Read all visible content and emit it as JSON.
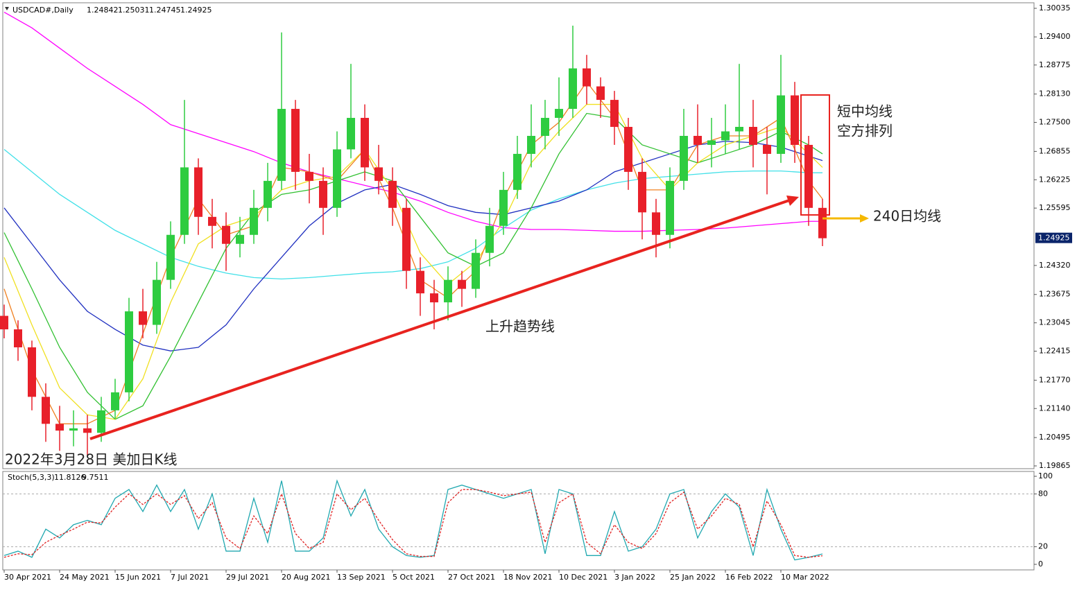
{
  "chart_data": [
    {
      "type": "candlestick",
      "title": "USDCAD#,Daily",
      "header_values": [
        1.24842,
        1.25031,
        1.24745,
        1.24925
      ],
      "up_color": "#2ecc40",
      "down_color": "#e8202a",
      "x": [
        0,
        4,
        8,
        12,
        16,
        20,
        24,
        28,
        32,
        36,
        40,
        44,
        48,
        52,
        56,
        60,
        64,
        68,
        72,
        76,
        80,
        84,
        88,
        92,
        96,
        100,
        104,
        108,
        112,
        116,
        120,
        124,
        128,
        132,
        136,
        140,
        144,
        148,
        152,
        156,
        160,
        164,
        168,
        172,
        176,
        180,
        184,
        188,
        192,
        196,
        200,
        204,
        208,
        212,
        216,
        220,
        224,
        228,
        232,
        236
      ],
      "open": [
        1.232,
        1.229,
        1.225,
        1.214,
        1.208,
        1.2065,
        1.207,
        1.206,
        1.211,
        1.215,
        1.233,
        1.23,
        1.24,
        1.25,
        1.265,
        1.254,
        1.252,
        1.248,
        1.25,
        1.256,
        1.262,
        1.278,
        1.264,
        1.262,
        1.256,
        1.269,
        1.276,
        1.265,
        1.262,
        1.256,
        1.242,
        1.237,
        1.235,
        1.24,
        1.238,
        1.246,
        1.252,
        1.26,
        1.268,
        1.272,
        1.276,
        1.278,
        1.287,
        1.283,
        1.28,
        1.274,
        1.264,
        1.255,
        1.25,
        1.262,
        1.272,
        1.27,
        1.271,
        1.273,
        1.274,
        1.27,
        1.268,
        1.281,
        1.27,
        1.256
      ],
      "high": [
        1.2345,
        1.231,
        1.2265,
        1.217,
        1.212,
        1.211,
        1.21,
        1.214,
        1.218,
        1.236,
        1.238,
        1.244,
        1.253,
        1.28,
        1.267,
        1.258,
        1.255,
        1.254,
        1.26,
        1.266,
        1.295,
        1.28,
        1.268,
        1.265,
        1.273,
        1.288,
        1.279,
        1.27,
        1.265,
        1.258,
        1.245,
        1.24,
        1.243,
        1.242,
        1.249,
        1.256,
        1.264,
        1.272,
        1.279,
        1.28,
        1.285,
        1.2965,
        1.29,
        1.285,
        1.282,
        1.276,
        1.267,
        1.258,
        1.265,
        1.278,
        1.279,
        1.276,
        1.279,
        1.288,
        1.28,
        1.274,
        1.29,
        1.284,
        1.272,
        1.258
      ],
      "low": [
        1.227,
        1.222,
        1.211,
        1.204,
        1.202,
        1.203,
        1.201,
        1.204,
        1.209,
        1.213,
        1.227,
        1.228,
        1.238,
        1.248,
        1.25,
        1.247,
        1.242,
        1.245,
        1.248,
        1.253,
        1.26,
        1.26,
        1.257,
        1.25,
        1.254,
        1.267,
        1.262,
        1.259,
        1.252,
        1.238,
        1.232,
        1.229,
        1.231,
        1.234,
        1.236,
        1.243,
        1.25,
        1.258,
        1.265,
        1.269,
        1.272,
        1.276,
        1.279,
        1.276,
        1.27,
        1.26,
        1.249,
        1.245,
        1.247,
        1.26,
        1.266,
        1.265,
        1.268,
        1.269,
        1.265,
        1.259,
        1.266,
        1.266,
        1.252,
        1.2475
      ],
      "close": [
        1.229,
        1.225,
        1.214,
        1.208,
        1.2065,
        1.207,
        1.206,
        1.211,
        1.215,
        1.233,
        1.23,
        1.24,
        1.25,
        1.265,
        1.254,
        1.252,
        1.248,
        1.25,
        1.256,
        1.262,
        1.278,
        1.264,
        1.262,
        1.256,
        1.269,
        1.276,
        1.265,
        1.262,
        1.256,
        1.242,
        1.237,
        1.235,
        1.24,
        1.238,
        1.246,
        1.252,
        1.26,
        1.268,
        1.272,
        1.276,
        1.278,
        1.287,
        1.283,
        1.28,
        1.274,
        1.264,
        1.255,
        1.25,
        1.262,
        1.272,
        1.27,
        1.271,
        1.273,
        1.274,
        1.27,
        1.268,
        1.281,
        1.27,
        1.256,
        1.24925
      ],
      "ma_x": [
        0,
        8,
        16,
        24,
        32,
        40,
        48,
        56,
        64,
        72,
        80,
        88,
        96,
        104,
        112,
        120,
        128,
        136,
        144,
        152,
        160,
        168,
        176,
        184,
        192,
        200,
        208,
        216,
        224,
        232,
        236
      ],
      "lines": [
        {
          "color": "#ff00ff",
          "values": [
            1.2995,
            1.296,
            1.2915,
            1.287,
            1.283,
            1.279,
            1.2745,
            1.2725,
            1.2705,
            1.2685,
            1.266,
            1.264,
            1.2625,
            1.261,
            1.2595,
            1.2575,
            1.255,
            1.253,
            1.2516,
            1.2512,
            1.2512,
            1.251,
            1.2508,
            1.2508,
            1.251,
            1.2512,
            1.2515,
            1.252,
            1.2525,
            1.253,
            1.253
          ]
        },
        {
          "color": "#40e0e8",
          "values": [
            1.269,
            1.264,
            1.259,
            1.255,
            1.251,
            1.248,
            1.245,
            1.243,
            1.2415,
            1.2405,
            1.2402,
            1.2405,
            1.241,
            1.2415,
            1.2418,
            1.2425,
            1.244,
            1.247,
            1.2515,
            1.2555,
            1.258,
            1.26,
            1.2615,
            1.2625,
            1.263,
            1.2635,
            1.264,
            1.2642,
            1.2642,
            1.2638,
            1.2638
          ]
        },
        {
          "color": "#2030c0",
          "values": [
            1.256,
            1.248,
            1.24,
            1.233,
            1.229,
            1.2255,
            1.2242,
            1.225,
            1.23,
            1.238,
            1.245,
            1.252,
            1.257,
            1.26,
            1.2612,
            1.259,
            1.2565,
            1.255,
            1.2545,
            1.256,
            1.2575,
            1.26,
            1.264,
            1.266,
            1.268,
            1.27,
            1.2708,
            1.2705,
            1.2695,
            1.2675,
            1.2665
          ]
        },
        {
          "color": "#30c030",
          "values": [
            1.2505,
            1.238,
            1.225,
            1.215,
            1.209,
            1.212,
            1.223,
            1.235,
            1.247,
            1.255,
            1.259,
            1.26,
            1.262,
            1.264,
            1.262,
            1.254,
            1.246,
            1.243,
            1.246,
            1.256,
            1.268,
            1.277,
            1.276,
            1.27,
            1.268,
            1.266,
            1.268,
            1.27,
            1.273,
            1.27,
            1.268
          ]
        },
        {
          "color": "#f0e020",
          "values": [
            1.245,
            1.23,
            1.216,
            1.21,
            1.209,
            1.218,
            1.235,
            1.248,
            1.252,
            1.254,
            1.26,
            1.262,
            1.263,
            1.269,
            1.26,
            1.246,
            1.239,
            1.244,
            1.253,
            1.266,
            1.273,
            1.279,
            1.279,
            1.267,
            1.26,
            1.266,
            1.27,
            1.272,
            1.274,
            1.268,
            1.265
          ]
        },
        {
          "color": "#f08020",
          "values": [
            1.238,
            1.22,
            1.208,
            1.208,
            1.211,
            1.228,
            1.245,
            1.258,
            1.25,
            1.252,
            1.265,
            1.264,
            1.262,
            1.269,
            1.256,
            1.24,
            1.236,
            1.242,
            1.258,
            1.27,
            1.275,
            1.284,
            1.276,
            1.26,
            1.26,
            1.27,
            1.272,
            1.272,
            1.276,
            1.262,
            1.258
          ]
        }
      ],
      "xlim": [
        0,
        297
      ],
      "xticks": [
        {
          "value": 0,
          "label": "30 Apr 2021"
        },
        {
          "value": 16,
          "label": "24 May 2021"
        },
        {
          "value": 32,
          "label": "15 Jun 2021"
        },
        {
          "value": 48,
          "label": "7 Jul 2021"
        },
        {
          "value": 64,
          "label": "29 Jul 2021"
        },
        {
          "value": 80,
          "label": "20 Aug 2021"
        },
        {
          "value": 96,
          "label": "13 Sep 2021"
        },
        {
          "value": 112,
          "label": "5 Oct 2021"
        },
        {
          "value": 128,
          "label": "27 Oct 2021"
        },
        {
          "value": 144,
          "label": "18 Nov 2021"
        },
        {
          "value": 160,
          "label": "10 Dec 2021"
        },
        {
          "value": 176,
          "label": "3 Jan 2022"
        },
        {
          "value": 192,
          "label": "25 Jan 2022"
        },
        {
          "value": 208,
          "label": "16 Feb 2022"
        },
        {
          "value": 224,
          "label": "10 Mar 2022"
        }
      ],
      "ylim": [
        1.19865,
        1.30035
      ],
      "yticks": [
        1.30035,
        {
          "value": 1.294,
          "label": "1.29400"
        },
        1.28775,
        {
          "value": 1.2813,
          "label": "1.28130"
        },
        {
          "value": 1.275,
          "label": "1.27500"
        },
        1.26855,
        1.26225,
        1.25595,
        {
          "value": 1.2432,
          "label": "1.24320"
        },
        1.23675,
        1.23045,
        1.22415,
        {
          "value": 1.2177,
          "label": "1.21770"
        },
        {
          "value": 1.2114,
          "label": "1.21140"
        },
        1.20495,
        1.19865
      ],
      "annotations": [
        "短中均线",
        "空方排列",
        "240日均线",
        "上升趋势线",
        "2022年3月28日 美加日K线"
      ]
    },
    {
      "type": "line",
      "title": "Stoch(5,3,3)",
      "x": [
        0,
        4,
        8,
        12,
        16,
        20,
        24,
        28,
        32,
        36,
        40,
        44,
        48,
        52,
        56,
        60,
        64,
        68,
        72,
        76,
        80,
        84,
        88,
        92,
        96,
        100,
        104,
        108,
        112,
        116,
        120,
        124,
        128,
        132,
        136,
        140,
        144,
        148,
        152,
        156,
        160,
        164,
        168,
        172,
        176,
        180,
        184,
        188,
        192,
        196,
        200,
        204,
        208,
        212,
        216,
        220,
        224,
        228,
        232,
        236
      ],
      "series": [
        {
          "color": "#20a8b0",
          "values": [
            10,
            15,
            8,
            40,
            30,
            45,
            50,
            45,
            75,
            85,
            60,
            90,
            60,
            85,
            40,
            80,
            15,
            15,
            75,
            25,
            95,
            15,
            15,
            30,
            95,
            55,
            85,
            40,
            20,
            10,
            8,
            10,
            85,
            90,
            85,
            80,
            75,
            80,
            85,
            12,
            85,
            80,
            10,
            10,
            60,
            15,
            20,
            40,
            80,
            85,
            30,
            60,
            80,
            65,
            10,
            85,
            40,
            5,
            8,
            11.8126
          ]
        },
        {
          "color": "#e02020",
          "values": [
            8,
            12,
            11,
            25,
            33,
            40,
            48,
            47,
            65,
            80,
            68,
            80,
            68,
            78,
            52,
            70,
            30,
            18,
            55,
            35,
            80,
            35,
            18,
            25,
            80,
            62,
            75,
            50,
            28,
            12,
            9,
            9,
            70,
            85,
            85,
            82,
            78,
            80,
            82,
            25,
            70,
            80,
            25,
            12,
            45,
            25,
            18,
            35,
            70,
            82,
            40,
            55,
            75,
            68,
            20,
            72,
            45,
            10,
            8,
            9.7511
          ]
        }
      ],
      "ylim": [
        0,
        100
      ],
      "yticks": [
        100,
        80,
        20,
        0
      ],
      "levels": [
        80,
        20
      ]
    }
  ]
}
